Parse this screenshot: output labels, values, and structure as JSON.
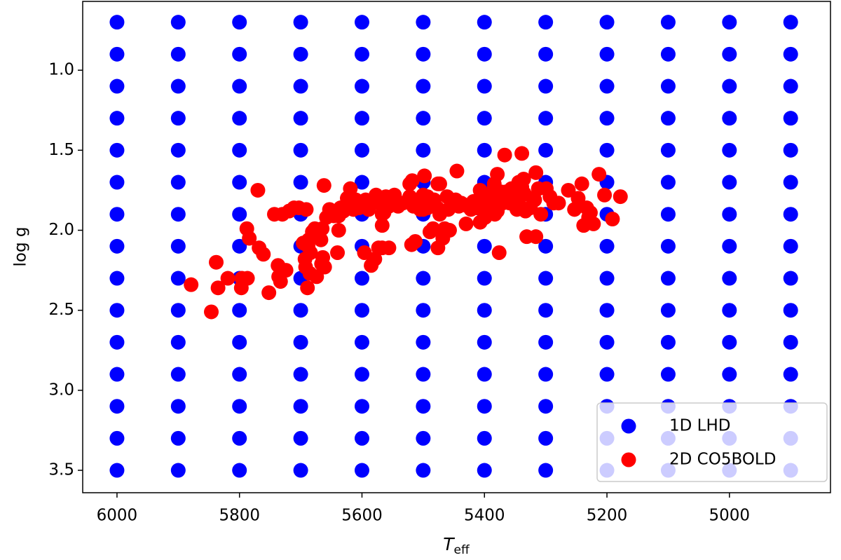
{
  "chart_data": {
    "type": "scatter",
    "xlabel": "T",
    "xlabel_sub": "eff",
    "ylabel": "log g",
    "xlim": [
      6056,
      4835
    ],
    "ylim": [
      3.64,
      0.57
    ],
    "xticks": [
      6000,
      5800,
      5600,
      5400,
      5200,
      5000
    ],
    "yticks": [
      {
        "value": 1,
        "label": "1.0"
      },
      1.5,
      {
        "value": 2,
        "label": "2.0"
      },
      2.5,
      {
        "value": 3,
        "label": "3.0"
      },
      3.5
    ],
    "legend": "lower right",
    "series": [
      {
        "name": "1D LHD",
        "color": "#0000ff",
        "x": [
          6000,
          6000,
          6000,
          6000,
          6000,
          6000,
          6000,
          6000,
          6000,
          6000,
          6000,
          6000,
          6000,
          6000,
          6000,
          5900,
          5900,
          5900,
          5900,
          5900,
          5900,
          5900,
          5900,
          5900,
          5900,
          5900,
          5900,
          5900,
          5900,
          5900,
          5800,
          5800,
          5800,
          5800,
          5800,
          5800,
          5800,
          5800,
          5800,
          5800,
          5800,
          5800,
          5800,
          5800,
          5800,
          5700,
          5700,
          5700,
          5700,
          5700,
          5700,
          5700,
          5700,
          5700,
          5700,
          5700,
          5700,
          5700,
          5700,
          5700,
          5600,
          5600,
          5600,
          5600,
          5600,
          5600,
          5600,
          5600,
          5600,
          5600,
          5600,
          5600,
          5600,
          5600,
          5600,
          5500,
          5500,
          5500,
          5500,
          5500,
          5500,
          5500,
          5500,
          5500,
          5500,
          5500,
          5500,
          5500,
          5500,
          5500,
          5400,
          5400,
          5400,
          5400,
          5400,
          5400,
          5400,
          5400,
          5400,
          5400,
          5400,
          5400,
          5400,
          5400,
          5400,
          5300,
          5300,
          5300,
          5300,
          5300,
          5300,
          5300,
          5300,
          5300,
          5300,
          5300,
          5300,
          5300,
          5300,
          5300,
          5200,
          5200,
          5200,
          5200,
          5200,
          5200,
          5200,
          5200,
          5200,
          5200,
          5200,
          5200,
          5200,
          5200,
          5200,
          5100,
          5100,
          5100,
          5100,
          5100,
          5100,
          5100,
          5100,
          5100,
          5100,
          5100,
          5100,
          5100,
          5100,
          5100,
          5000,
          5000,
          5000,
          5000,
          5000,
          5000,
          5000,
          5000,
          5000,
          5000,
          5000,
          5000,
          5000,
          5000,
          5000,
          4900,
          4900,
          4900,
          4900,
          4900,
          4900,
          4900,
          4900,
          4900,
          4900,
          4900,
          4900,
          4900,
          4900,
          4900
        ],
        "y": [
          0.7,
          0.9,
          1.1,
          1.3,
          1.5,
          1.7,
          1.9,
          2.1,
          2.3,
          2.5,
          2.7,
          2.9,
          3.1,
          3.3,
          3.5,
          0.7,
          0.9,
          1.1,
          1.3,
          1.5,
          1.7,
          1.9,
          2.1,
          2.3,
          2.5,
          2.7,
          2.9,
          3.1,
          3.3,
          3.5,
          0.7,
          0.9,
          1.1,
          1.3,
          1.5,
          1.7,
          1.9,
          2.1,
          2.3,
          2.5,
          2.7,
          2.9,
          3.1,
          3.3,
          3.5,
          0.7,
          0.9,
          1.1,
          1.3,
          1.5,
          1.7,
          1.9,
          2.1,
          2.3,
          2.5,
          2.7,
          2.9,
          3.1,
          3.3,
          3.5,
          0.7,
          0.9,
          1.1,
          1.3,
          1.5,
          1.7,
          1.9,
          2.1,
          2.3,
          2.5,
          2.7,
          2.9,
          3.1,
          3.3,
          3.5,
          0.7,
          0.9,
          1.1,
          1.3,
          1.5,
          1.7,
          1.9,
          2.1,
          2.3,
          2.5,
          2.7,
          2.9,
          3.1,
          3.3,
          3.5,
          0.7,
          0.9,
          1.1,
          1.3,
          1.5,
          1.7,
          1.9,
          2.1,
          2.3,
          2.5,
          2.7,
          2.9,
          3.1,
          3.3,
          3.5,
          0.7,
          0.9,
          1.1,
          1.3,
          1.5,
          1.7,
          1.9,
          2.1,
          2.3,
          2.5,
          2.7,
          2.9,
          3.1,
          3.3,
          3.5,
          0.7,
          0.9,
          1.1,
          1.3,
          1.5,
          1.7,
          1.9,
          2.1,
          2.3,
          2.5,
          2.7,
          2.9,
          3.1,
          3.3,
          3.5,
          0.7,
          0.9,
          1.1,
          1.3,
          1.5,
          1.7,
          1.9,
          2.1,
          2.3,
          2.5,
          2.7,
          2.9,
          3.1,
          3.3,
          3.5,
          0.7,
          0.9,
          1.1,
          1.3,
          1.5,
          1.7,
          1.9,
          2.1,
          2.3,
          2.5,
          2.7,
          2.9,
          3.1,
          3.3,
          3.5,
          0.7,
          0.9,
          1.1,
          1.3,
          1.5,
          1.7,
          1.9,
          2.1,
          2.3,
          2.5,
          2.7,
          2.9,
          3.1,
          3.3,
          3.5
        ]
      },
      {
        "name": "2D CO5BOLD",
        "color": "#ff0000",
        "x": [
          5879,
          5846,
          5838,
          5835,
          5819,
          5797,
          5796,
          5787,
          5770,
          5788,
          5784,
          5768,
          5761,
          5752,
          5743,
          5737,
          5736,
          5733,
          5730,
          5724,
          5719,
          5711,
          5703,
          5696,
          5691,
          5689,
          5693,
          5692,
          5688,
          5687,
          5684,
          5685,
          5681,
          5677,
          5674,
          5669,
          5667,
          5664,
          5666,
          5661,
          5665,
          5658,
          5653,
          5646,
          5638,
          5635,
          5630,
          5624,
          5621,
          5619,
          5614,
          5610,
          5605,
          5598,
          5594,
          5589,
          5578,
          5573,
          5567,
          5564,
          5561,
          5556,
          5585,
          5579,
          5573,
          5567,
          5564,
          5567,
          5577,
          5547,
          5541,
          5533,
          5522,
          5516,
          5509,
          5505,
          5500,
          5519,
          5517,
          5513,
          5493,
          5489,
          5484,
          5482,
          5477,
          5473,
          5468,
          5465,
          5459,
          5453,
          5476,
          5498,
          5518,
          5473,
          5461,
          5447,
          5442,
          5434,
          5430,
          5427,
          5418,
          5413,
          5407,
          5402,
          5399,
          5390,
          5387,
          5383,
          5378,
          5376,
          5384,
          5379,
          5373,
          5370,
          5365,
          5359,
          5352,
          5347,
          5344,
          5339,
          5336,
          5333,
          5331,
          5325,
          5318,
          5316,
          5312,
          5308,
          5299,
          5287,
          5279,
          5263,
          5253,
          5241,
          5238,
          5230,
          5227,
          5222,
          5213,
          5204,
          5191,
          5178,
          5445,
          5339,
          5367,
          5316,
          5596,
          5662,
          5556,
          5619,
          5638,
          5640,
          5522,
          5500,
          5476,
          5493,
          5482,
          5457,
          5438,
          5407,
          5402,
          5396,
          5379,
          5356,
          5344,
          5335,
          5321,
          5293,
          5247,
          5233,
          5384,
          5422,
          5397
        ],
        "y": [
          2.34,
          2.51,
          2.2,
          2.36,
          2.3,
          2.36,
          2.3,
          2.3,
          1.75,
          1.99,
          2.05,
          2.11,
          2.15,
          2.39,
          1.9,
          2.22,
          2.29,
          2.32,
          1.9,
          2.25,
          1.88,
          1.86,
          1.86,
          2.08,
          1.87,
          2.36,
          2.18,
          2.23,
          2.1,
          2.06,
          2.14,
          2.27,
          2.01,
          1.99,
          2.29,
          2.0,
          2.06,
          2.17,
          2.21,
          2.23,
          1.99,
          1.92,
          1.87,
          1.91,
          1.91,
          1.86,
          1.88,
          1.8,
          1.84,
          1.82,
          1.87,
          1.81,
          1.86,
          1.83,
          1.81,
          1.87,
          1.81,
          1.83,
          1.9,
          1.85,
          1.79,
          1.85,
          2.22,
          2.18,
          2.11,
          2.11,
          1.89,
          1.97,
          1.78,
          1.78,
          1.85,
          1.83,
          1.79,
          1.85,
          1.81,
          1.87,
          1.87,
          2.09,
          1.82,
          2.07,
          1.86,
          2.01,
          1.99,
          1.85,
          1.86,
          1.9,
          2.05,
          1.99,
          1.87,
          1.83,
          1.71,
          1.66,
          1.69,
          1.71,
          1.79,
          1.81,
          1.85,
          1.84,
          1.96,
          1.85,
          1.82,
          1.86,
          1.95,
          1.85,
          1.92,
          1.79,
          1.86,
          1.9,
          1.81,
          2.14,
          1.71,
          1.65,
          1.76,
          1.83,
          1.76,
          1.83,
          1.79,
          1.87,
          1.82,
          1.73,
          1.68,
          1.88,
          2.04,
          1.86,
          1.81,
          2.04,
          1.74,
          1.9,
          1.74,
          1.83,
          1.83,
          1.75,
          1.87,
          1.71,
          1.97,
          1.92,
          1.89,
          1.96,
          1.65,
          1.78,
          1.93,
          1.79,
          1.63,
          1.52,
          1.53,
          1.64,
          2.14,
          1.72,
          2.11,
          1.74,
          2.0,
          2.14,
          1.71,
          1.78,
          2.11,
          1.79,
          1.81,
          2.0,
          1.83,
          1.75,
          1.79,
          1.84,
          1.88,
          1.74,
          1.7,
          1.77,
          1.8,
          1.79,
          1.8,
          1.86,
          1.73,
          1.87,
          1.78
        ]
      }
    ]
  }
}
